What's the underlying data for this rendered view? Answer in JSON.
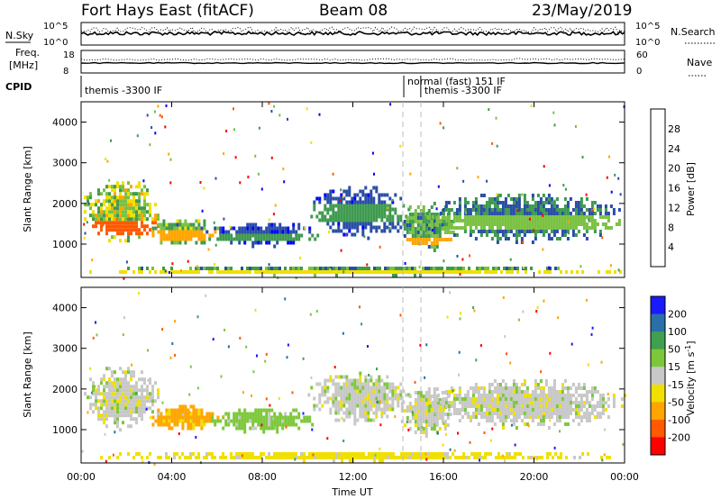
{
  "header": {
    "station": "Fort Hays East (fitACF)",
    "beam": "Beam 08",
    "date": "23/May/2019"
  },
  "strip_labels": {
    "nsky": "N.Sky",
    "nsky_top": "10^5",
    "nsky_bottom": "10^0",
    "nsearch": "N.Search",
    "nsearch_top": "10^5",
    "nsearch_bottom": "10^0",
    "freq_line1": "Freq.",
    "freq_line2": "[MHz]",
    "freq_top": "18",
    "freq_bottom": "8",
    "nave": "Nave",
    "nave_top": "60",
    "nave_bottom": "0",
    "cpid": "CPID"
  },
  "cpid_segments": [
    {
      "label": "themis -3300 IF",
      "start_h": 0.0,
      "end_h": 14.25
    },
    {
      "label": "normal (fast) 151 IF",
      "start_h": 14.25,
      "end_h": 15.0
    },
    {
      "label": "themis -3300 IF",
      "start_h": 15.0,
      "end_h": 24.0
    }
  ],
  "time_axis": {
    "label": "Time UT",
    "ticks": [
      "00:00",
      "04:00",
      "08:00",
      "12:00",
      "16:00",
      "20:00",
      "00:00"
    ],
    "range_hours": [
      0,
      24
    ]
  },
  "chart_data": [
    {
      "type": "heatmap",
      "name": "power",
      "ylabel": "Slant Range [km]",
      "ylim": [
        180,
        4500
      ],
      "yticks": [
        1000,
        2000,
        3000,
        4000
      ],
      "colorbar_label": "Power [dB]",
      "colorbar_ticks": [
        4,
        8,
        12,
        16,
        20,
        24,
        28
      ],
      "colorbar_range": [
        0,
        32
      ],
      "colors": [
        "#0000ff",
        "#2a4ea6",
        "#3e9a4f",
        "#7ac142",
        "#f0e000",
        "#ffa500",
        "#ff5a00",
        "#ff0000"
      ],
      "regions": [
        {
          "t": [
            0.0,
            3.5
          ],
          "r": [
            950,
            2500
          ],
          "core": [
            1200,
            1500
          ],
          "peak": 27
        },
        {
          "t": [
            3.0,
            6.0
          ],
          "r": [
            900,
            1600
          ],
          "core": [
            1000,
            1300
          ],
          "peak": 22
        },
        {
          "t": [
            5.5,
            10.5
          ],
          "r": [
            900,
            1500
          ],
          "core": [
            1050,
            1250
          ],
          "peak": 8
        },
        {
          "t": [
            10.0,
            14.5
          ],
          "r": [
            1100,
            2400
          ],
          "core": [
            1500,
            1900
          ],
          "peak": 10
        },
        {
          "t": [
            14.0,
            16.5
          ],
          "r": [
            800,
            2000
          ],
          "core": [
            900,
            1100
          ],
          "peak": 20
        },
        {
          "t": [
            15.0,
            24.0
          ],
          "r": [
            1000,
            2200
          ],
          "core": [
            1300,
            1700
          ],
          "peak": 14
        },
        {
          "t": [
            0.0,
            24.0
          ],
          "r": [
            180,
            420
          ],
          "core": [
            200,
            300
          ],
          "peak": 18
        }
      ]
    },
    {
      "type": "heatmap",
      "name": "velocity",
      "ylabel": "Slant Range [km]",
      "ylim": [
        180,
        4500
      ],
      "yticks": [
        1000,
        2000,
        3000,
        4000
      ],
      "colorbar_label": "Velocity [m s^-1]",
      "colorbar_ticks": [
        200,
        100,
        50,
        15,
        -15,
        -50,
        -100,
        -200
      ],
      "colors": [
        "#1a1aff",
        "#2a6fa8",
        "#3fa050",
        "#7cc83a",
        "#c8c8c8",
        "#f0e000",
        "#ffa500",
        "#ff5a00",
        "#ff0000"
      ],
      "regions": [
        {
          "t": [
            0.0,
            3.5
          ],
          "r": [
            950,
            2500
          ],
          "value": 0
        },
        {
          "t": [
            3.0,
            6.0
          ],
          "r": [
            900,
            1600
          ],
          "value": -60
        },
        {
          "t": [
            5.5,
            10.5
          ],
          "r": [
            900,
            1500
          ],
          "value": 30
        },
        {
          "t": [
            10.0,
            14.5
          ],
          "r": [
            1100,
            2400
          ],
          "value": 0
        },
        {
          "t": [
            14.0,
            16.5
          ],
          "r": [
            800,
            2000
          ],
          "value": 0
        },
        {
          "t": [
            15.0,
            24.0
          ],
          "r": [
            1000,
            2200
          ],
          "value": 0
        },
        {
          "t": [
            0.0,
            24.0
          ],
          "r": [
            180,
            420
          ],
          "value": -30
        }
      ]
    }
  ]
}
